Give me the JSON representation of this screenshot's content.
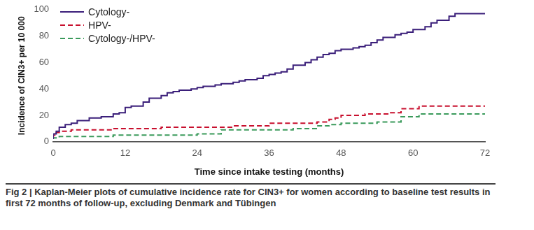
{
  "chart_data": {
    "type": "line",
    "title": "Fig 2 | Kaplan-Meier plots of cumulative incidence rate for CIN3+ for women according to baseline test results in first 72 months of follow-up, excluding Denmark and Tübingen",
    "x_label": "Time since intake testing (months)",
    "y_label": "Incidence of CIN3+ per 10 000",
    "xlim": [
      0,
      72
    ],
    "xticks": [
      0,
      12,
      24,
      36,
      48,
      60,
      72
    ],
    "ylim": [
      0,
      100
    ],
    "yticks": [
      0,
      20,
      40,
      60,
      80,
      100
    ],
    "grid": false,
    "legend": "upper left",
    "series": [
      {
        "name": "Cytology-",
        "color": "#3b1f7a",
        "line_style": "solid",
        "x": [
          0,
          0.5,
          1,
          2,
          3,
          4,
          6,
          8,
          10,
          11,
          12,
          13,
          15,
          16,
          18,
          19,
          20,
          21,
          23,
          24,
          25,
          27,
          28,
          30,
          31,
          32,
          34,
          35,
          36,
          37,
          38,
          39,
          40,
          42,
          43,
          44,
          45,
          46,
          47,
          48,
          50,
          51,
          52,
          53,
          54,
          55,
          57,
          58,
          59,
          60,
          62,
          63,
          64,
          66,
          67,
          68,
          72
        ],
        "values": [
          2,
          6,
          8,
          11,
          13,
          14,
          16,
          18,
          19,
          21,
          22,
          26,
          27,
          30,
          33,
          35,
          37,
          38,
          39,
          40,
          41,
          42,
          43,
          44,
          45,
          46,
          47,
          48,
          50,
          51,
          52,
          53,
          55,
          58,
          60,
          62,
          64,
          66,
          67,
          69,
          70,
          71,
          72,
          73,
          75,
          77,
          79,
          81,
          82,
          83,
          85,
          87,
          90,
          92,
          95,
          97,
          97
        ]
      },
      {
        "name": "HPV-",
        "color": "#c8102e",
        "line_style": "dashed",
        "x": [
          0,
          0.5,
          1,
          3,
          10,
          18,
          30,
          36,
          44,
          46,
          47,
          48,
          52,
          56,
          58,
          61,
          64,
          72
        ],
        "values": [
          3,
          5,
          7,
          8,
          9,
          10,
          11,
          12,
          14,
          15,
          17,
          18,
          20,
          21,
          22,
          25,
          27,
          27
        ]
      },
      {
        "name": "Cytology-/HPV-",
        "color": "#3a9a5b",
        "line_style": "dashed",
        "x": [
          0,
          1,
          10,
          24,
          28,
          40,
          44,
          46,
          48,
          54,
          58,
          61,
          64,
          72
        ],
        "values": [
          2,
          3,
          4,
          5,
          6,
          9,
          10,
          12,
          13,
          14,
          15,
          19,
          21,
          21
        ]
      }
    ]
  }
}
